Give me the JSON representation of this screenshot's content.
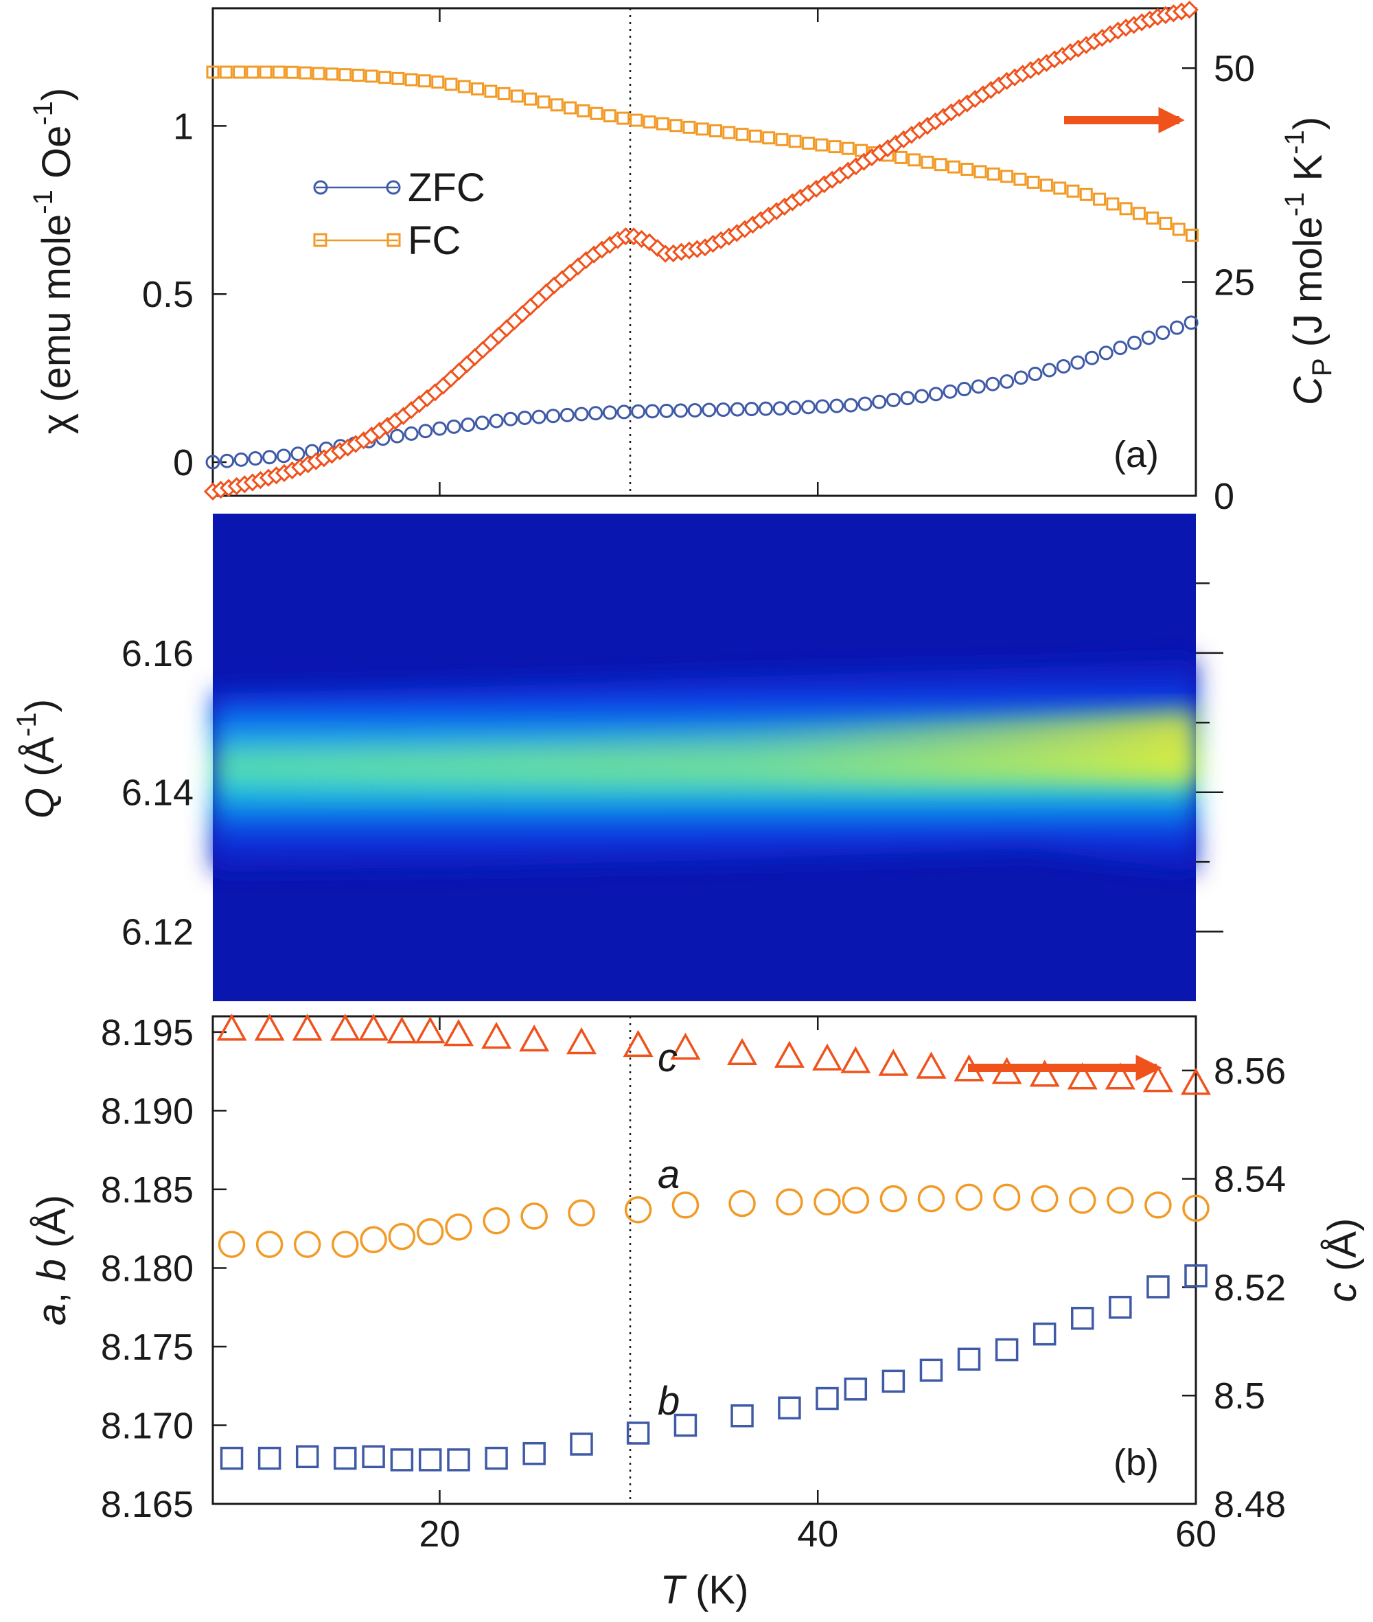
{
  "chart_data": [
    {
      "panel": "(a)",
      "type": "scatter",
      "xlabel": "T (K)",
      "xlim": [
        8,
        60
      ],
      "xticks": [
        20,
        40,
        60
      ],
      "ylabel_left": {
        "text": "χ (emu mole",
        "sup1": "-1",
        "mid": " Oe",
        "sup2": "-1",
        "end": ")"
      },
      "ylim_left": [
        -0.1,
        1.35
      ],
      "yticks_left": [
        "0",
        "0.5",
        "1"
      ],
      "ylabel_right": {
        "sym": "C",
        "sub": "P",
        "text": " (J mole",
        "sup1": "-1",
        "mid": " K",
        "sup2": "-1",
        "end": ")"
      },
      "ylim_right": [
        0,
        57
      ],
      "yticks_right": [
        "0",
        "25",
        "50"
      ],
      "vline_x": 30,
      "colors": {
        "ZFC": "#3f5aa6",
        "FC": "#f29a26",
        "Cp": "#f0521c"
      },
      "legend": [
        "ZFC",
        "FC"
      ],
      "series": [
        {
          "name": "ZFC",
          "axis": "left",
          "x": [
            8,
            12,
            16,
            20,
            24,
            28,
            30,
            34,
            38,
            42,
            46,
            50,
            54,
            56,
            58,
            60
          ],
          "y": [
            0.0,
            0.02,
            0.06,
            0.1,
            0.13,
            0.145,
            0.15,
            0.155,
            0.16,
            0.17,
            0.2,
            0.24,
            0.3,
            0.34,
            0.38,
            0.42
          ]
        },
        {
          "name": "FC",
          "axis": "left",
          "x": [
            8,
            12,
            16,
            20,
            24,
            28,
            30,
            34,
            38,
            42,
            46,
            50,
            54,
            58,
            60
          ],
          "y": [
            1.16,
            1.16,
            1.15,
            1.13,
            1.09,
            1.04,
            1.02,
            0.99,
            0.96,
            0.93,
            0.89,
            0.85,
            0.8,
            0.72,
            0.67
          ]
        },
        {
          "name": "Cp",
          "axis": "right",
          "x": [
            8,
            10,
            12,
            14,
            16,
            18,
            20,
            22,
            24,
            26,
            28,
            29.5,
            30,
            31,
            32,
            34,
            36,
            38,
            40,
            42,
            44,
            46,
            48,
            50,
            52,
            54,
            56,
            58,
            60
          ],
          "y": [
            0.5,
            1.5,
            2.8,
            4.5,
            6.5,
            9.2,
            12.5,
            16.5,
            20.5,
            24.5,
            28,
            30,
            30.5,
            29.8,
            28.2,
            29.0,
            31.0,
            33.5,
            36.0,
            38.5,
            41.0,
            43.5,
            46.0,
            48.5,
            50.5,
            52.5,
            54.5,
            56.0,
            57.0
          ]
        }
      ],
      "arrow": "right"
    },
    {
      "panel": "Q map",
      "type": "heatmap",
      "ylabel": {
        "sym": "Q",
        "text": " (Å",
        "sup": "-1",
        "end": ")"
      },
      "ylim": [
        6.11,
        6.18
      ],
      "yticks": [
        6.12,
        6.14,
        6.16
      ],
      "ytick_labels": [
        "6.12",
        "6.14",
        "6.16"
      ],
      "ridge_center_Q": [
        6.142,
        6.142,
        6.143,
        6.144,
        6.145,
        6.146
      ],
      "ridge_T": [
        8,
        20,
        30,
        40,
        50,
        60
      ]
    },
    {
      "panel": "(b)",
      "type": "scatter",
      "xlabel_sym": "T",
      "xlabel_unit": " (K)",
      "xlim": [
        8,
        60
      ],
      "xticks": [
        20,
        40,
        60
      ],
      "ylabel_left": {
        "a": "a",
        "sep": ", ",
        "b": "b",
        "unit": " (Å)"
      },
      "ylim_left": [
        8.165,
        8.196
      ],
      "yticks_left": [
        "8.165",
        "8.170",
        "8.175",
        "8.180",
        "8.185",
        "8.190",
        "8.195"
      ],
      "ylabel_right": {
        "c": "c",
        "unit": " (Å)"
      },
      "ylim_right": [
        8.48,
        8.57
      ],
      "yticks_right": [
        "8.48",
        "8.5",
        "8.52",
        "8.54",
        "8.56"
      ],
      "vline_x": 30,
      "colors": {
        "a": "#f29a26",
        "b": "#3f5aa6",
        "c": "#f0521c"
      },
      "series": [
        {
          "name": "c",
          "axis": "right",
          "x": [
            9,
            11,
            13,
            15,
            16.5,
            18,
            19.5,
            21,
            23,
            25,
            27.5,
            30.5,
            33,
            36,
            38.5,
            40.5,
            42,
            44,
            46,
            48,
            50,
            52,
            54,
            56,
            58,
            60
          ],
          "y": [
            8.5675,
            8.5675,
            8.5675,
            8.5675,
            8.5675,
            8.567,
            8.567,
            8.5665,
            8.566,
            8.5655,
            8.565,
            8.5645,
            8.564,
            8.563,
            8.5625,
            8.562,
            8.5615,
            8.561,
            8.5605,
            8.56,
            8.5595,
            8.559,
            8.5585,
            8.5585,
            8.558,
            8.5575
          ]
        },
        {
          "name": "a",
          "axis": "left",
          "x": [
            9,
            11,
            13,
            15,
            16.5,
            18,
            19.5,
            21,
            23,
            25,
            27.5,
            30.5,
            33,
            36,
            38.5,
            40.5,
            42,
            44,
            46,
            48,
            50,
            52,
            54,
            56,
            58,
            60
          ],
          "y": [
            8.1815,
            8.1815,
            8.1815,
            8.1815,
            8.1818,
            8.182,
            8.1823,
            8.1826,
            8.183,
            8.1833,
            8.1835,
            8.1837,
            8.184,
            8.1841,
            8.1842,
            8.1842,
            8.1843,
            8.1844,
            8.1844,
            8.1845,
            8.1845,
            8.1844,
            8.1843,
            8.1843,
            8.184,
            8.1838
          ]
        },
        {
          "name": "b",
          "axis": "left",
          "x": [
            9,
            11,
            13,
            15,
            16.5,
            18,
            19.5,
            21,
            23,
            25,
            27.5,
            30.5,
            33,
            36,
            38.5,
            40.5,
            42,
            44,
            46,
            48,
            50,
            52,
            54,
            56,
            58,
            60
          ],
          "y": [
            8.1679,
            8.1679,
            8.168,
            8.1679,
            8.168,
            8.1678,
            8.1678,
            8.1678,
            8.1679,
            8.1682,
            8.1688,
            8.1695,
            8.17,
            8.1706,
            8.1711,
            8.1717,
            8.1723,
            8.1728,
            8.1735,
            8.1742,
            8.1748,
            8.1758,
            8.1768,
            8.1775,
            8.1788,
            8.1795
          ]
        }
      ],
      "series_labels": [
        "c",
        "a",
        "b"
      ],
      "arrow": "right"
    }
  ]
}
